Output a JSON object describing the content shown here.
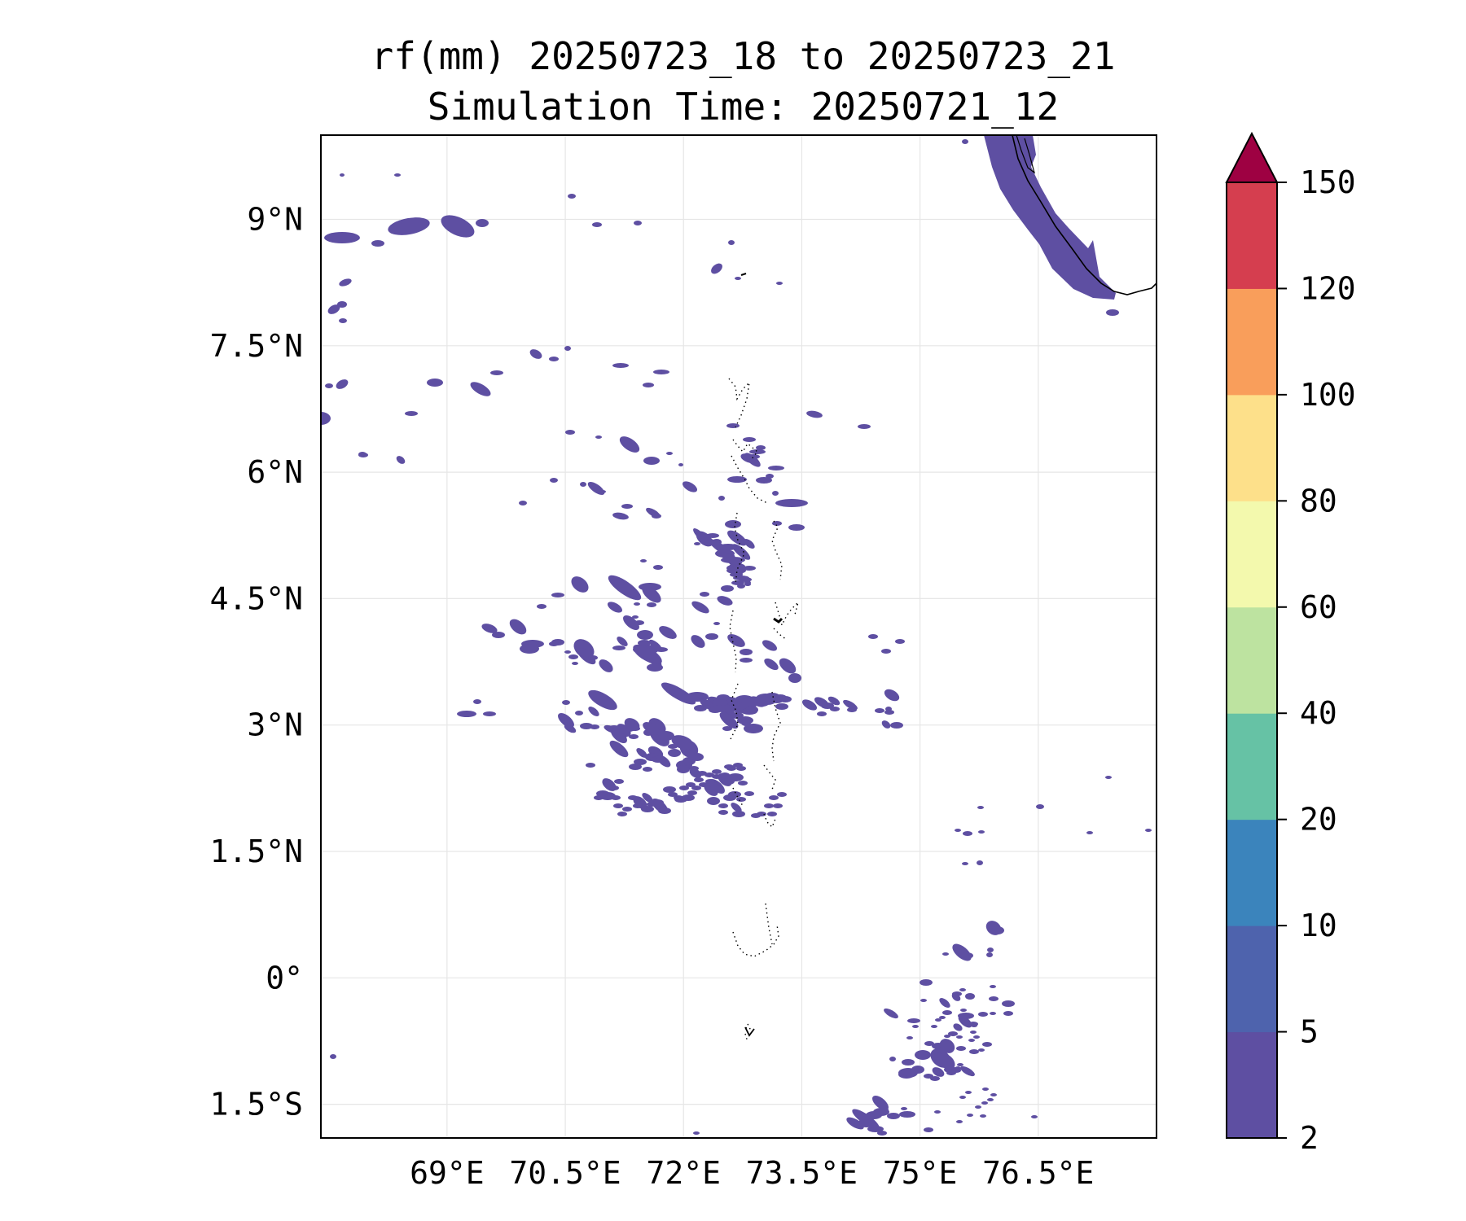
{
  "title": {
    "line1": "rf(mm) 20250723_18 to 20250723_21",
    "line2": "Simulation Time: 20250721_12"
  },
  "map": {
    "lon_range": [
      67.4,
      78.0
    ],
    "lat_range": [
      -1.9,
      10.0
    ],
    "x_ticks": [
      {
        "value": 69,
        "label": "69°E"
      },
      {
        "value": 70.5,
        "label": "70.5°E"
      },
      {
        "value": 72,
        "label": "72°E"
      },
      {
        "value": 73.5,
        "label": "73.5°E"
      },
      {
        "value": 75,
        "label": "75°E"
      },
      {
        "value": 76.5,
        "label": "76.5°E"
      }
    ],
    "y_ticks": [
      {
        "value": 9,
        "label": "9°N"
      },
      {
        "value": 7.5,
        "label": "7.5°N"
      },
      {
        "value": 6,
        "label": "6°N"
      },
      {
        "value": 4.5,
        "label": "4.5°N"
      },
      {
        "value": 3,
        "label": "3°N"
      },
      {
        "value": 1.5,
        "label": "1.5°N"
      },
      {
        "value": 0,
        "label": "0°"
      },
      {
        "value": -1.5,
        "label": "1.5°S"
      }
    ],
    "grid": true,
    "rain_color": "#5e4fa2",
    "coast_color": "#000000"
  },
  "colorbar": {
    "levels": [
      "2",
      "5",
      "10",
      "20",
      "40",
      "60",
      "80",
      "100",
      "120",
      "150"
    ],
    "colors": [
      "#5e4fa2",
      "#4e63ad",
      "#3b84bc",
      "#66c2a5",
      "#bde3a0",
      "#f3f9ad",
      "#fde08a",
      "#f99e5b",
      "#d53e4f",
      "#9e0142"
    ],
    "extend": "max"
  }
}
